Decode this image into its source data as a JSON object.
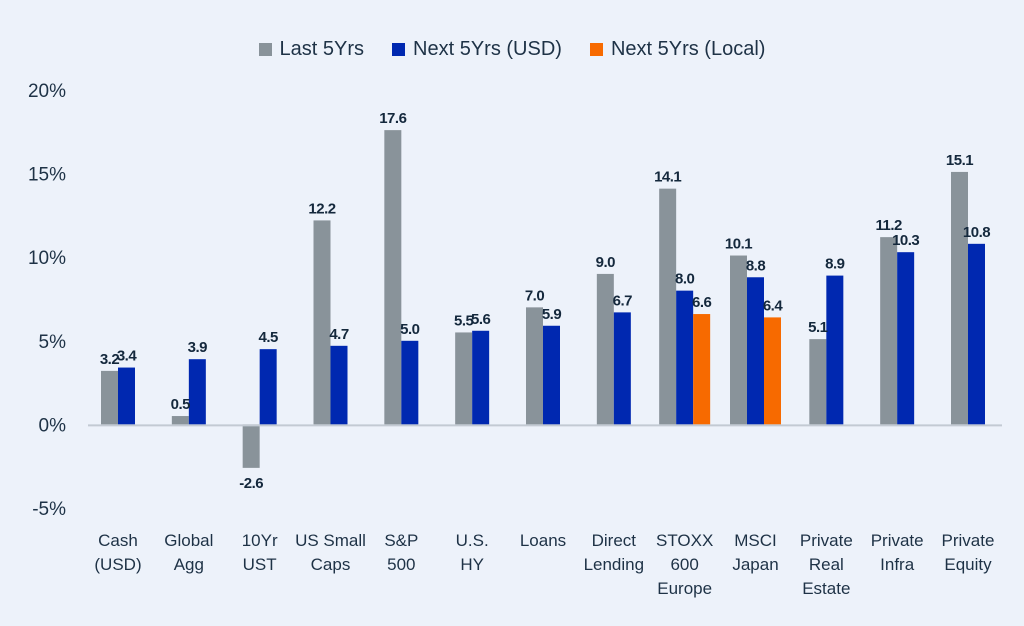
{
  "chart_data": {
    "type": "bar",
    "title": "",
    "xlabel": "",
    "ylabel": "",
    "ylim": [
      -5,
      20
    ],
    "yticks": [
      20,
      15,
      10,
      5,
      0,
      -5
    ],
    "ytick_labels": [
      "20%",
      "15%",
      "10%",
      "5%",
      "0%",
      "-5%"
    ],
    "grid": false,
    "legend_position": "top-center",
    "categories": [
      [
        "Cash",
        "(USD)"
      ],
      [
        "Global",
        "Agg"
      ],
      [
        "10Yr",
        "UST"
      ],
      [
        "US Small",
        "Caps"
      ],
      [
        "S&P",
        "500"
      ],
      [
        "U.S.",
        "HY"
      ],
      [
        "Loans"
      ],
      [
        "Direct",
        "Lending"
      ],
      [
        "STOXX",
        "600",
        "Europe"
      ],
      [
        "MSCI",
        "Japan"
      ],
      [
        "Private",
        "Real",
        "Estate"
      ],
      [
        "Private",
        "Infra"
      ],
      [
        "Private",
        "Equity"
      ]
    ],
    "series": [
      {
        "name": "Last 5Yrs",
        "color": "#89939A",
        "values": [
          3.2,
          0.5,
          -2.6,
          12.2,
          17.6,
          5.5,
          7.0,
          9.0,
          14.1,
          10.1,
          5.1,
          11.2,
          15.1
        ],
        "labels": [
          "3.2",
          "0.5",
          "-2.6",
          "12.2",
          "17.6",
          "5.5",
          "7.0",
          "9.0",
          "14.1",
          "10.1",
          "5.1",
          "11.2",
          "15.1"
        ]
      },
      {
        "name": "Next 5Yrs (USD)",
        "color": "#0028B0",
        "values": [
          3.4,
          3.9,
          4.5,
          4.7,
          5.0,
          5.6,
          5.9,
          6.7,
          8.0,
          8.8,
          8.9,
          10.3,
          10.8
        ],
        "labels": [
          "3.4",
          "3.9",
          "4.5",
          "4.7",
          "5.0",
          "5.6",
          "5.9",
          "6.7",
          "8.0",
          "8.8",
          "8.9",
          "10.3",
          "10.8"
        ]
      },
      {
        "name": "Next 5Yrs (Local)",
        "color": "#F76A00",
        "values": [
          null,
          null,
          null,
          null,
          null,
          null,
          null,
          null,
          6.6,
          6.4,
          null,
          null,
          null
        ],
        "labels": [
          null,
          null,
          null,
          null,
          null,
          null,
          null,
          null,
          "6.6",
          "6.4",
          null,
          null,
          null
        ]
      }
    ]
  }
}
